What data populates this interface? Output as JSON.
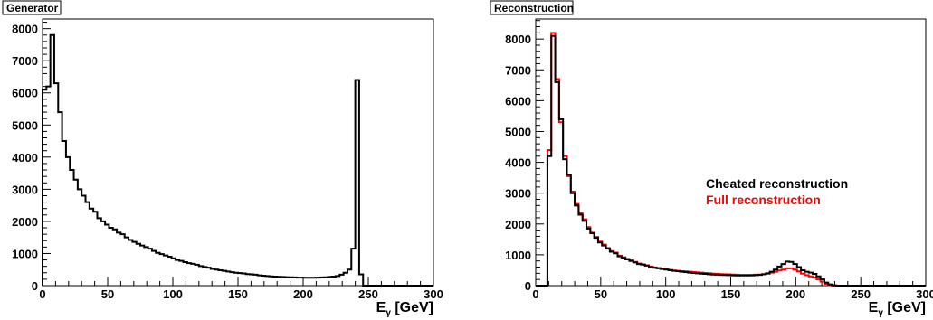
{
  "chart_data": [
    {
      "type": "histogram",
      "title": "Generator",
      "xlabel": "E",
      "xlabel_sub": "γ",
      "xlabel_unit": " [GeV]",
      "xlim": [
        0,
        300
      ],
      "ylim": [
        0,
        8300
      ],
      "xticks": [
        "0",
        "50",
        "100",
        "150",
        "200",
        "250",
        "300"
      ],
      "yticks": [
        "0",
        "1000",
        "2000",
        "3000",
        "4000",
        "5000",
        "6000",
        "7000",
        "8000"
      ],
      "bin_width": 3,
      "series": [
        {
          "color": "#000000",
          "values": [
            6100,
            6200,
            7800,
            6300,
            5400,
            4500,
            4000,
            3600,
            3300,
            3000,
            2800,
            2600,
            2400,
            2300,
            2100,
            2000,
            1900,
            1800,
            1750,
            1650,
            1600,
            1500,
            1420,
            1360,
            1300,
            1250,
            1200,
            1150,
            1080,
            1020,
            980,
            940,
            900,
            850,
            800,
            770,
            730,
            700,
            680,
            650,
            610,
            580,
            560,
            520,
            500,
            480,
            460,
            440,
            420,
            400,
            390,
            380,
            360,
            350,
            340,
            320,
            310,
            300,
            290,
            280,
            275,
            270,
            265,
            260,
            255,
            250,
            250,
            245,
            245,
            245,
            250,
            255,
            260,
            270,
            280,
            300,
            340,
            400,
            500,
            1150,
            6400,
            350,
            0,
            0,
            0,
            0,
            0,
            0,
            0,
            0,
            0,
            0,
            0,
            0,
            0,
            0,
            0,
            0,
            0,
            0
          ]
        }
      ]
    },
    {
      "type": "histogram",
      "title": "Reconstruction",
      "xlabel": "E",
      "xlabel_sub": "γ",
      "xlabel_unit": " [GeV]",
      "xlim": [
        0,
        300
      ],
      "ylim": [
        0,
        8650
      ],
      "xticks": [
        "0",
        "50",
        "100",
        "150",
        "200",
        "250",
        "300"
      ],
      "yticks": [
        "0",
        "1000",
        "2000",
        "3000",
        "4000",
        "5000",
        "6000",
        "7000",
        "8000"
      ],
      "bin_width": 3,
      "legend": [
        {
          "label": "Cheated reconstruction",
          "color": "#000000"
        },
        {
          "label": "Full reconstruction",
          "color": "#ff0000"
        }
      ],
      "series": [
        {
          "name": "Cheated reconstruction",
          "color": "#000000",
          "values": [
            0,
            0,
            0,
            4200,
            8100,
            6600,
            5400,
            4100,
            3600,
            3000,
            2600,
            2300,
            2100,
            1850,
            1700,
            1550,
            1400,
            1300,
            1200,
            1100,
            1050,
            950,
            900,
            850,
            800,
            750,
            700,
            680,
            650,
            600,
            580,
            560,
            540,
            520,
            500,
            480,
            470,
            450,
            440,
            420,
            410,
            400,
            390,
            380,
            370,
            360,
            355,
            350,
            345,
            340,
            335,
            330,
            330,
            330,
            330,
            335,
            340,
            350,
            370,
            400,
            450,
            520,
            620,
            700,
            780,
            770,
            700,
            600,
            500,
            450,
            420,
            380,
            300,
            200,
            100,
            40,
            10,
            0,
            0,
            0,
            0,
            0,
            0,
            0,
            0,
            0,
            0,
            0,
            0,
            0,
            0,
            0,
            0,
            0,
            0,
            0,
            0,
            0,
            0,
            0
          ]
        },
        {
          "name": "Full reconstruction",
          "color": "#ff0000",
          "values": [
            0,
            0,
            0,
            4400,
            8200,
            6700,
            5300,
            4200,
            3550,
            3050,
            2650,
            2350,
            2150,
            1900,
            1720,
            1580,
            1430,
            1330,
            1220,
            1120,
            1070,
            970,
            920,
            870,
            820,
            770,
            720,
            690,
            660,
            620,
            590,
            570,
            550,
            530,
            510,
            490,
            480,
            470,
            460,
            450,
            440,
            430,
            420,
            410,
            400,
            390,
            380,
            375,
            370,
            365,
            360,
            355,
            350,
            350,
            350,
            350,
            355,
            360,
            370,
            390,
            420,
            450,
            490,
            520,
            560,
            560,
            520,
            460,
            390,
            340,
            300,
            260,
            200,
            130,
            60,
            20,
            5,
            0,
            0,
            0,
            0,
            0,
            0,
            0,
            0,
            0,
            0,
            0,
            0,
            0,
            0,
            0,
            0,
            0,
            0,
            0,
            0,
            0,
            0,
            0
          ]
        }
      ]
    }
  ]
}
